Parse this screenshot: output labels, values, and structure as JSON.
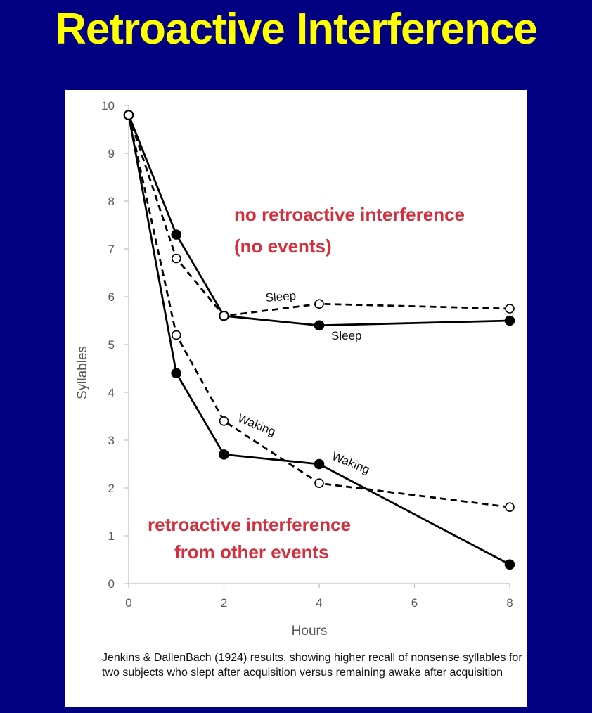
{
  "slide": {
    "title": "Retroactive Interference"
  },
  "chart_data": {
    "type": "line",
    "xlabel": "Hours",
    "ylabel": "Syllables",
    "xlim": [
      0,
      8
    ],
    "ylim": [
      0,
      10
    ],
    "x_ticks": [
      "0",
      "2",
      "4",
      "6",
      "8"
    ],
    "y_ticks": [
      "0",
      "1",
      "2",
      "3",
      "4",
      "5",
      "6",
      "7",
      "8",
      "9",
      "10"
    ],
    "grid": false,
    "series": [
      {
        "name": "Sleep",
        "style": "solid",
        "marker": "filled",
        "x": [
          0,
          1,
          2,
          4,
          8
        ],
        "y": [
          9.8,
          7.3,
          5.6,
          5.4,
          5.5
        ]
      },
      {
        "name": "Sleep",
        "style": "dashed",
        "marker": "open",
        "x": [
          0,
          1,
          2,
          4,
          8
        ],
        "y": [
          9.8,
          6.8,
          5.6,
          5.85,
          5.75
        ]
      },
      {
        "name": "Waking",
        "style": "solid",
        "marker": "filled",
        "x": [
          0,
          1,
          2,
          4,
          8
        ],
        "y": [
          9.8,
          4.4,
          2.7,
          2.5,
          0.4
        ]
      },
      {
        "name": "Waking",
        "style": "dashed",
        "marker": "open",
        "x": [
          0,
          1,
          2,
          4,
          8
        ],
        "y": [
          9.8,
          5.2,
          3.4,
          2.1,
          1.6
        ]
      }
    ],
    "annotations": {
      "top_line1": "no retroactive interference",
      "top_line2": "(no events)",
      "bottom_line1": "retroactive interference",
      "bottom_line2": "from other events",
      "sleep_upper": "Sleep",
      "sleep_lower": "Sleep",
      "waking_left": "Waking",
      "waking_right": "Waking"
    },
    "colors": {
      "line": "#000000",
      "annotation": "#d32f3c",
      "axis": "#bfbfbf"
    }
  },
  "caption": "Jenkins & DallenBach (1924) results, showing higher recall of nonsense syllables for two subjects who slept after acquisition versus remaining awake after acquisition"
}
